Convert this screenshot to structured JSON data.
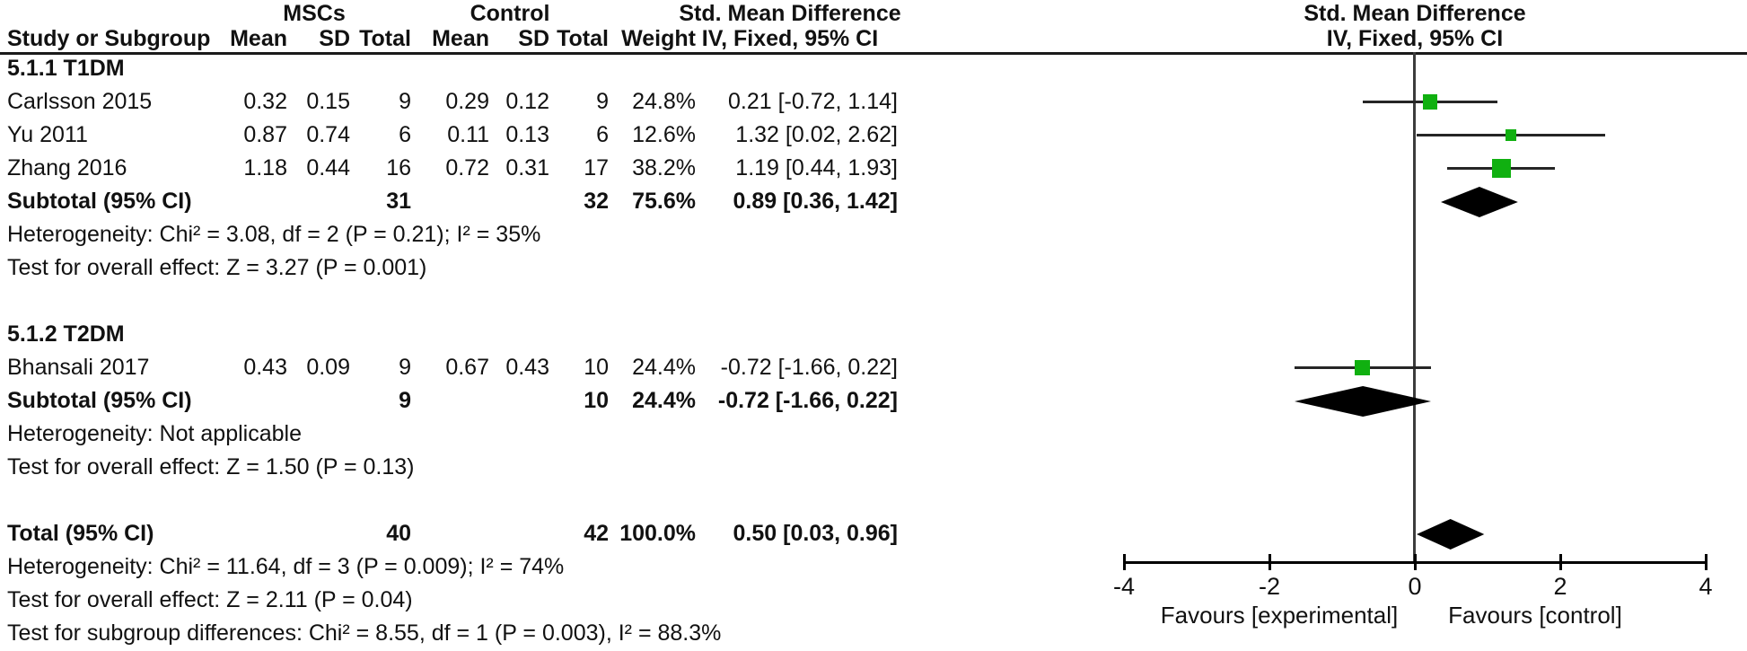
{
  "columns": {
    "study": "Study or Subgroup",
    "mean": "Mean",
    "sd": "SD",
    "total": "Total",
    "weight": "Weight",
    "smd": "Std. Mean Difference",
    "iv": "IV, Fixed, 95% CI",
    "group_experimental": "MSCs",
    "group_control": "Control"
  },
  "sections": [
    {
      "title": "5.1.1 T1DM",
      "studies": [
        {
          "name": "Carlsson 2015",
          "mean1": "0.32",
          "sd1": "0.15",
          "total1": "9",
          "mean2": "0.29",
          "sd2": "0.12",
          "total2": "9",
          "weight": "24.8%",
          "ci": "0.21 [-0.72, 1.14]"
        },
        {
          "name": "Yu 2011",
          "mean1": "0.87",
          "sd1": "0.74",
          "total1": "6",
          "mean2": "0.11",
          "sd2": "0.13",
          "total2": "6",
          "weight": "12.6%",
          "ci": "1.32 [0.02, 2.62]"
        },
        {
          "name": "Zhang 2016",
          "mean1": "1.18",
          "sd1": "0.44",
          "total1": "16",
          "mean2": "0.72",
          "sd2": "0.31",
          "total2": "17",
          "weight": "38.2%",
          "ci": "1.19 [0.44, 1.93]"
        }
      ],
      "subtotal": {
        "label": "Subtotal (95% CI)",
        "total1": "31",
        "total2": "32",
        "weight": "75.6%",
        "ci": "0.89 [0.36, 1.42]"
      },
      "heterogeneity": "Heterogeneity: Chi² = 3.08, df = 2 (P = 0.21); I² = 35%",
      "overall": "Test for overall effect: Z = 3.27 (P = 0.001)"
    },
    {
      "title": "5.1.2 T2DM",
      "studies": [
        {
          "name": "Bhansali 2017",
          "mean1": "0.43",
          "sd1": "0.09",
          "total1": "9",
          "mean2": "0.67",
          "sd2": "0.43",
          "total2": "10",
          "weight": "24.4%",
          "ci": "-0.72 [-1.66, 0.22]"
        }
      ],
      "subtotal": {
        "label": "Subtotal (95% CI)",
        "total1": "9",
        "total2": "10",
        "weight": "24.4%",
        "ci": "-0.72 [-1.66, 0.22]"
      },
      "heterogeneity": "Heterogeneity: Not applicable",
      "overall": "Test for overall effect: Z = 1.50 (P = 0.13)"
    }
  ],
  "total_row": {
    "label": "Total (95% CI)",
    "total1": "40",
    "total2": "42",
    "weight": "100.0%",
    "ci": "0.50 [0.03, 0.96]"
  },
  "footer": {
    "heterogeneity": "Heterogeneity: Chi² = 11.64, df = 3 (P = 0.009); I² = 74%",
    "overall": "Test for overall effect: Z = 2.11 (P = 0.04)",
    "subgroup": "Test for subgroup differences: Chi² = 8.55, df = 1 (P = 0.003), I² = 88.3%"
  },
  "chart_data": {
    "type": "forest",
    "effect_measure": "Std. Mean Difference",
    "method": "IV, Fixed, 95% CI",
    "axis": {
      "min": -4,
      "max": 4,
      "ticks": [
        -4,
        -2,
        0,
        2,
        4
      ]
    },
    "favours_left": "Favours [experimental]",
    "favours_right": "Favours [control]",
    "marker_color": "#10b010",
    "diamond_color": "#000000",
    "rows": [
      {
        "kind": "study",
        "label": "Carlsson 2015",
        "row": 1,
        "est": 0.21,
        "lo": -0.72,
        "hi": 1.14,
        "weight": 24.8
      },
      {
        "kind": "study",
        "label": "Yu 2011",
        "row": 2,
        "est": 1.32,
        "lo": 0.02,
        "hi": 2.62,
        "weight": 12.6
      },
      {
        "kind": "study",
        "label": "Zhang 2016",
        "row": 3,
        "est": 1.19,
        "lo": 0.44,
        "hi": 1.93,
        "weight": 38.2
      },
      {
        "kind": "diamond",
        "label": "Subtotal T1DM",
        "row": 4,
        "est": 0.89,
        "lo": 0.36,
        "hi": 1.42
      },
      {
        "kind": "study",
        "label": "Bhansali 2017",
        "row": 9,
        "est": -0.72,
        "lo": -1.66,
        "hi": 0.22,
        "weight": 24.4
      },
      {
        "kind": "diamond",
        "label": "Subtotal T2DM",
        "row": 10,
        "est": -0.72,
        "lo": -1.66,
        "hi": 0.22
      },
      {
        "kind": "diamond",
        "label": "Total",
        "row": 14,
        "est": 0.5,
        "lo": 0.03,
        "hi": 0.96
      }
    ]
  }
}
